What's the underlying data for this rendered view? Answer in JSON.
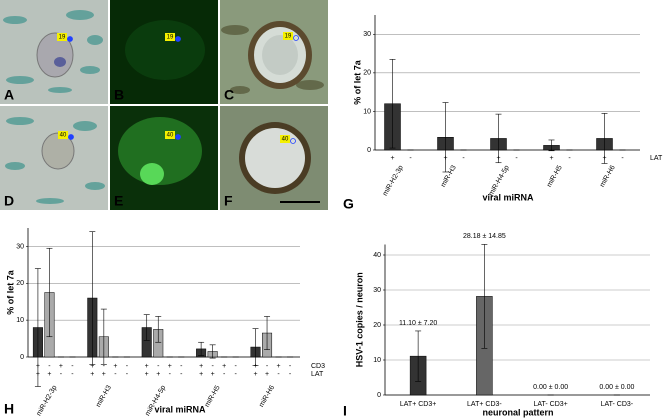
{
  "panels": [
    {
      "letter": "A",
      "tag": "19"
    },
    {
      "letter": "B",
      "tag": "19"
    },
    {
      "letter": "C",
      "tag": "19"
    },
    {
      "letter": "D",
      "tag": "40"
    },
    {
      "letter": "E",
      "tag": "40"
    },
    {
      "letter": "F",
      "tag": "40"
    }
  ],
  "chart_data": [
    {
      "type": "bar",
      "panel_label": "G",
      "x_label": "viral miRNA",
      "y_label": "% of let 7a",
      "categories": [
        "miR-H2-3p",
        "miR-H3",
        "miR-H4-5p",
        "miR-H5",
        "miR-H6"
      ],
      "series": [
        {
          "color": "#333333",
          "values": [
            12,
            3.3,
            3,
            1.2,
            3
          ],
          "errors": [
            11.5,
            9,
            6.3,
            1.4,
            6.5
          ]
        },
        {
          "color": "#aaaaaa",
          "values": [
            0,
            0,
            0,
            0,
            0
          ],
          "errors": [
            0,
            0,
            0,
            0,
            0
          ]
        }
      ],
      "sub_rows": [
        {
          "name": "LAT",
          "labels": [
            "+",
            "-"
          ]
        }
      ],
      "ylim": [
        0,
        35
      ],
      "yticks": [
        0,
        10,
        20,
        30
      ],
      "grid": true
    },
    {
      "type": "bar",
      "panel_label": "H",
      "x_label": "viral miRNA",
      "y_label": "% of let 7a",
      "categories": [
        "miR-H2-3p",
        "miR-H3",
        "miR-H4-5p",
        "miR-H5",
        "miR-H6"
      ],
      "series": [
        {
          "color": "#333333",
          "values": [
            8,
            16,
            8,
            2.2,
            2.7
          ],
          "errors": [
            16,
            18,
            3.5,
            1.8,
            5
          ]
        },
        {
          "color": "#aaaaaa",
          "values": [
            17.5,
            5.5,
            7.5,
            1.5,
            6.5
          ],
          "errors": [
            12,
            7.5,
            3.5,
            1.8,
            4.5
          ]
        },
        {
          "color": "#333333",
          "values": [
            0,
            0,
            0,
            0,
            0
          ],
          "errors": [
            0,
            0,
            0,
            0,
            0
          ]
        },
        {
          "color": "#aaaaaa",
          "values": [
            0,
            0,
            0,
            0,
            0
          ],
          "errors": [
            0,
            0,
            0,
            0,
            0
          ]
        }
      ],
      "sub_rows": [
        {
          "name": "CD3",
          "labels": [
            "+",
            "-",
            "+",
            "-"
          ]
        },
        {
          "name": "LAT",
          "labels": [
            "+",
            "+",
            "-",
            "-"
          ]
        }
      ],
      "ylim": [
        0,
        35
      ],
      "yticks": [
        0,
        10,
        20,
        30
      ],
      "grid": true
    },
    {
      "type": "bar",
      "panel_label": "I",
      "x_label": "neuronal pattern",
      "y_label": "HSV-1 copies / neuron",
      "categories": [
        "LAT+ CD3+",
        "LAT+ CD3-",
        "LAT- CD3+",
        "LAT- CD3-"
      ],
      "series": [
        {
          "colors": [
            "#333333",
            "#666666",
            "#333333",
            "#666666"
          ],
          "values": [
            11.1,
            28.18,
            0,
            0
          ],
          "errors": [
            7.2,
            14.85,
            0,
            0
          ],
          "value_labels": [
            "11.10 ± 7.20",
            "28.18 ± 14.85",
            "0.00 ± 0.00",
            "0.00 ± 0.00"
          ]
        }
      ],
      "ylim": [
        0,
        43
      ],
      "yticks": [
        0,
        10,
        20,
        30,
        40
      ],
      "grid": true
    }
  ]
}
